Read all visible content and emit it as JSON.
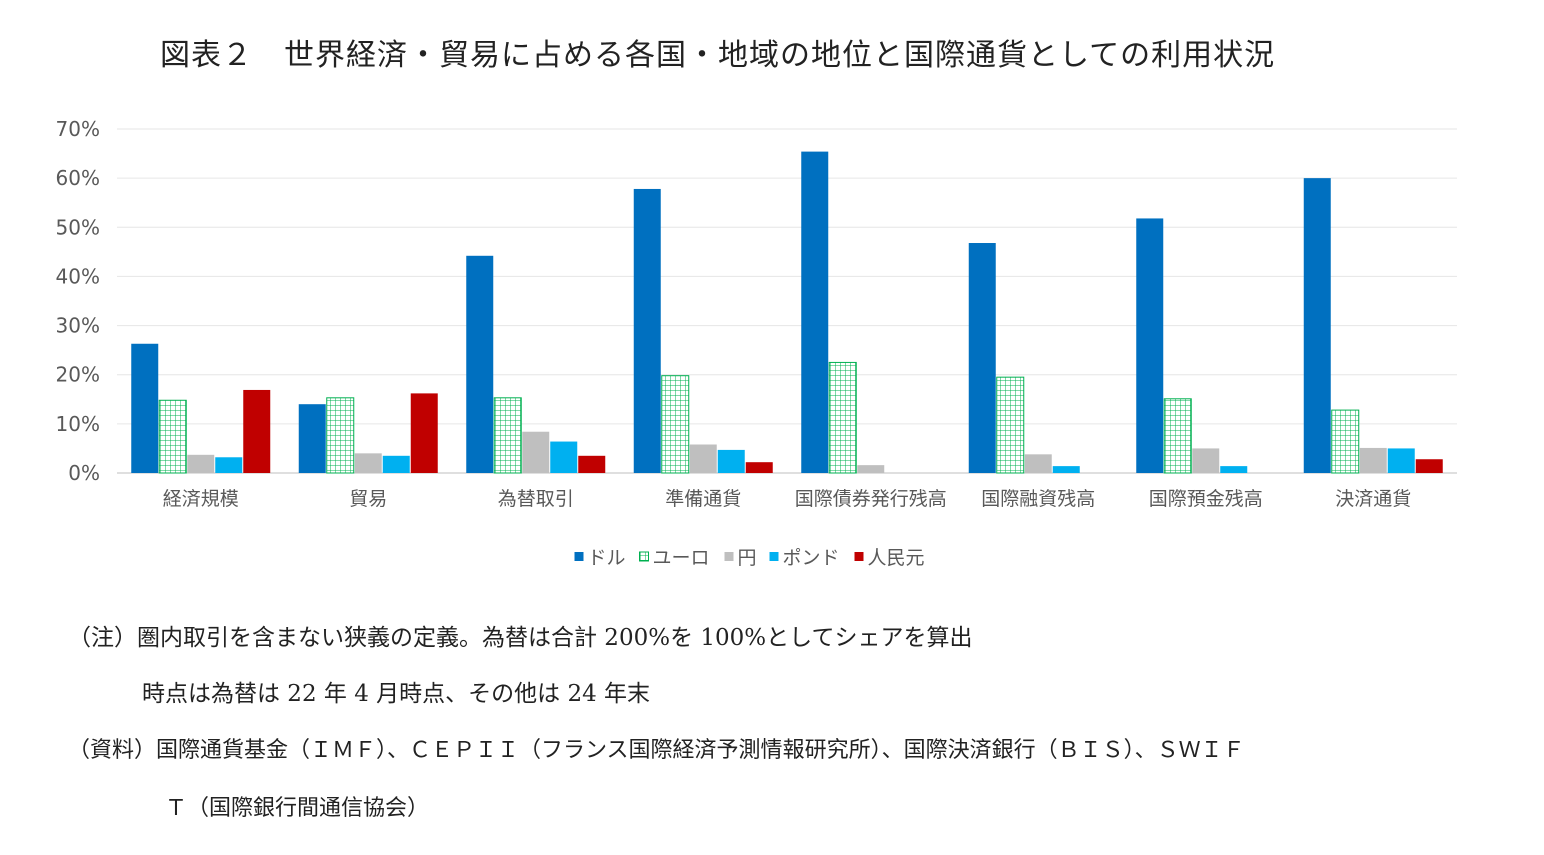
{
  "chart_data": {
    "type": "bar",
    "title": "図表２　世界経済・貿易に占める各国・地域の地位と国際通貨としての利用状況",
    "categories": [
      "経済規模",
      "貿易",
      "為替取引",
      "準備通貨",
      "国際債券発行残高",
      "国際融資残高",
      "国際預金残高",
      "決済通貨"
    ],
    "series": [
      {
        "name": "ドル",
        "color": "#0070C0",
        "pattern": "solid",
        "values": [
          26.3,
          14.0,
          44.2,
          57.8,
          65.4,
          46.8,
          51.8,
          60.0
        ]
      },
      {
        "name": "ユーロ",
        "color": "#00B050",
        "pattern": "grid",
        "values": [
          14.8,
          15.3,
          15.3,
          19.8,
          22.5,
          19.5,
          15.1,
          12.8
        ]
      },
      {
        "name": "円",
        "color": "#BFBFBF",
        "pattern": "solid",
        "values": [
          3.7,
          4.0,
          8.4,
          5.8,
          1.6,
          3.8,
          5.0,
          5.1
        ]
      },
      {
        "name": "ポンド",
        "color": "#00B0F0",
        "pattern": "solid",
        "values": [
          3.2,
          3.5,
          6.4,
          4.7,
          0,
          1.4,
          1.4,
          5.0
        ]
      },
      {
        "name": "人民元",
        "color": "#C00000",
        "pattern": "solid",
        "values": [
          16.9,
          16.2,
          3.5,
          2.2,
          0,
          0,
          0,
          2.8
        ]
      }
    ],
    "ylim": [
      0,
      70
    ],
    "yticks": [
      0,
      10,
      20,
      30,
      40,
      50,
      60,
      70
    ],
    "ytick_labels": [
      "0%",
      "10%",
      "20%",
      "30%",
      "40%",
      "50%",
      "60%",
      "70%"
    ],
    "grid": true,
    "legend_position": "bottom"
  },
  "notes": {
    "line1": "（注）圏内取引を含まない狭義の定義。為替は合計 200%を 100%としてシェアを算出",
    "line2": "時点は為替は 22 年 4 月時点、その他は 24 年末"
  },
  "source": {
    "line1": "（資料）国際通貨基金（ＩＭＦ）、ＣＥＰＩＩ（フランス国際経済予測情報研究所）、国際決済銀行（ＢＩＳ）、ＳＷＩＦ",
    "line2": "Ｔ（国際銀行間通信協会）"
  }
}
